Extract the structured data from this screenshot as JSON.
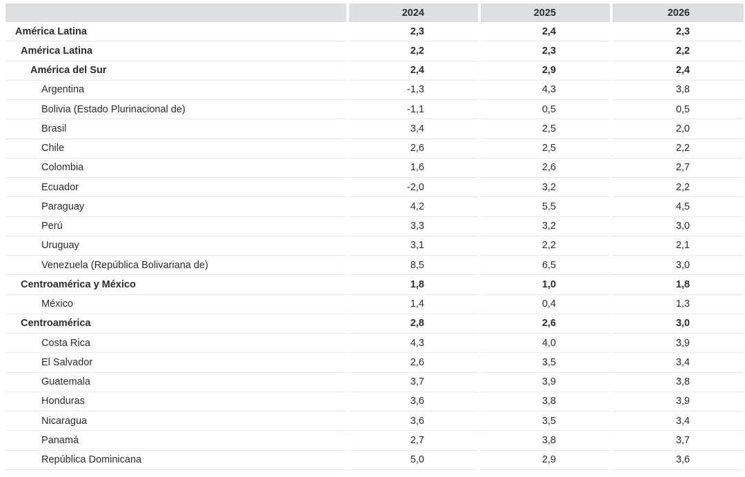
{
  "table": {
    "header": [
      "2024",
      "2025",
      "2026"
    ],
    "rows": [
      {
        "label": "América Latina",
        "level": 0,
        "bold": true,
        "values": [
          "2,3",
          "2,4",
          "2,3"
        ]
      },
      {
        "label": "América Latina",
        "level": 1,
        "bold": true,
        "values": [
          "2,2",
          "2,3",
          "2,2"
        ]
      },
      {
        "label": "América del Sur",
        "level": 2,
        "bold": true,
        "values": [
          "2,4",
          "2,9",
          "2,4"
        ]
      },
      {
        "label": "Argentina",
        "level": 3,
        "bold": false,
        "values": [
          "-1,3",
          "4,3",
          "3,8"
        ]
      },
      {
        "label": "Bolivia (Estado Plurinacional de)",
        "level": 3,
        "bold": false,
        "values": [
          "-1,1",
          "0,5",
          "0,5"
        ]
      },
      {
        "label": "Brasil",
        "level": 3,
        "bold": false,
        "values": [
          "3,4",
          "2,5",
          "2,0"
        ]
      },
      {
        "label": "Chile",
        "level": 3,
        "bold": false,
        "values": [
          "2,6",
          "2,5",
          "2,2"
        ]
      },
      {
        "label": "Colombia",
        "level": 3,
        "bold": false,
        "values": [
          "1,6",
          "2,6",
          "2,7"
        ]
      },
      {
        "label": "Ecuador",
        "level": 3,
        "bold": false,
        "values": [
          "-2,0",
          "3,2",
          "2,2"
        ]
      },
      {
        "label": "Paraguay",
        "level": 3,
        "bold": false,
        "values": [
          "4,2",
          "5,5",
          "4,5"
        ]
      },
      {
        "label": "Perú",
        "level": 3,
        "bold": false,
        "values": [
          "3,3",
          "3,2",
          "3,0"
        ]
      },
      {
        "label": "Uruguay",
        "level": 3,
        "bold": false,
        "values": [
          "3,1",
          "2,2",
          "2,1"
        ]
      },
      {
        "label": "Venezuela (República Bolivariana de)",
        "level": 3,
        "bold": false,
        "values": [
          "8,5",
          "6,5",
          "3,0"
        ]
      },
      {
        "label": "Centroamérica y México",
        "level": 1,
        "bold": true,
        "values": [
          "1,8",
          "1,0",
          "1,8"
        ]
      },
      {
        "label": "México",
        "level": 3,
        "bold": false,
        "values": [
          "1,4",
          "0,4",
          "1,3"
        ]
      },
      {
        "label": "Centroamérica",
        "level": 1,
        "bold": true,
        "values": [
          "2,8",
          "2,6",
          "3,0"
        ]
      },
      {
        "label": "Costa Rica",
        "level": 3,
        "bold": false,
        "values": [
          "4,3",
          "4,0",
          "3,9"
        ]
      },
      {
        "label": "El Salvador",
        "level": 3,
        "bold": false,
        "values": [
          "2,6",
          "3,5",
          "3,4"
        ]
      },
      {
        "label": "Guatemala",
        "level": 3,
        "bold": false,
        "values": [
          "3,7",
          "3,9",
          "3,8"
        ]
      },
      {
        "label": "Honduras",
        "level": 3,
        "bold": false,
        "values": [
          "3,6",
          "3,8",
          "3,9"
        ]
      },
      {
        "label": "Nicaragua",
        "level": 3,
        "bold": false,
        "values": [
          "3,6",
          "3,5",
          "3,4"
        ]
      },
      {
        "label": "Panamá",
        "level": 3,
        "bold": false,
        "values": [
          "2,7",
          "3,8",
          "3,7"
        ]
      },
      {
        "label": "República Dominicana",
        "level": 3,
        "bold": false,
        "values": [
          "5,0",
          "2,9",
          "3,6"
        ]
      }
    ]
  }
}
